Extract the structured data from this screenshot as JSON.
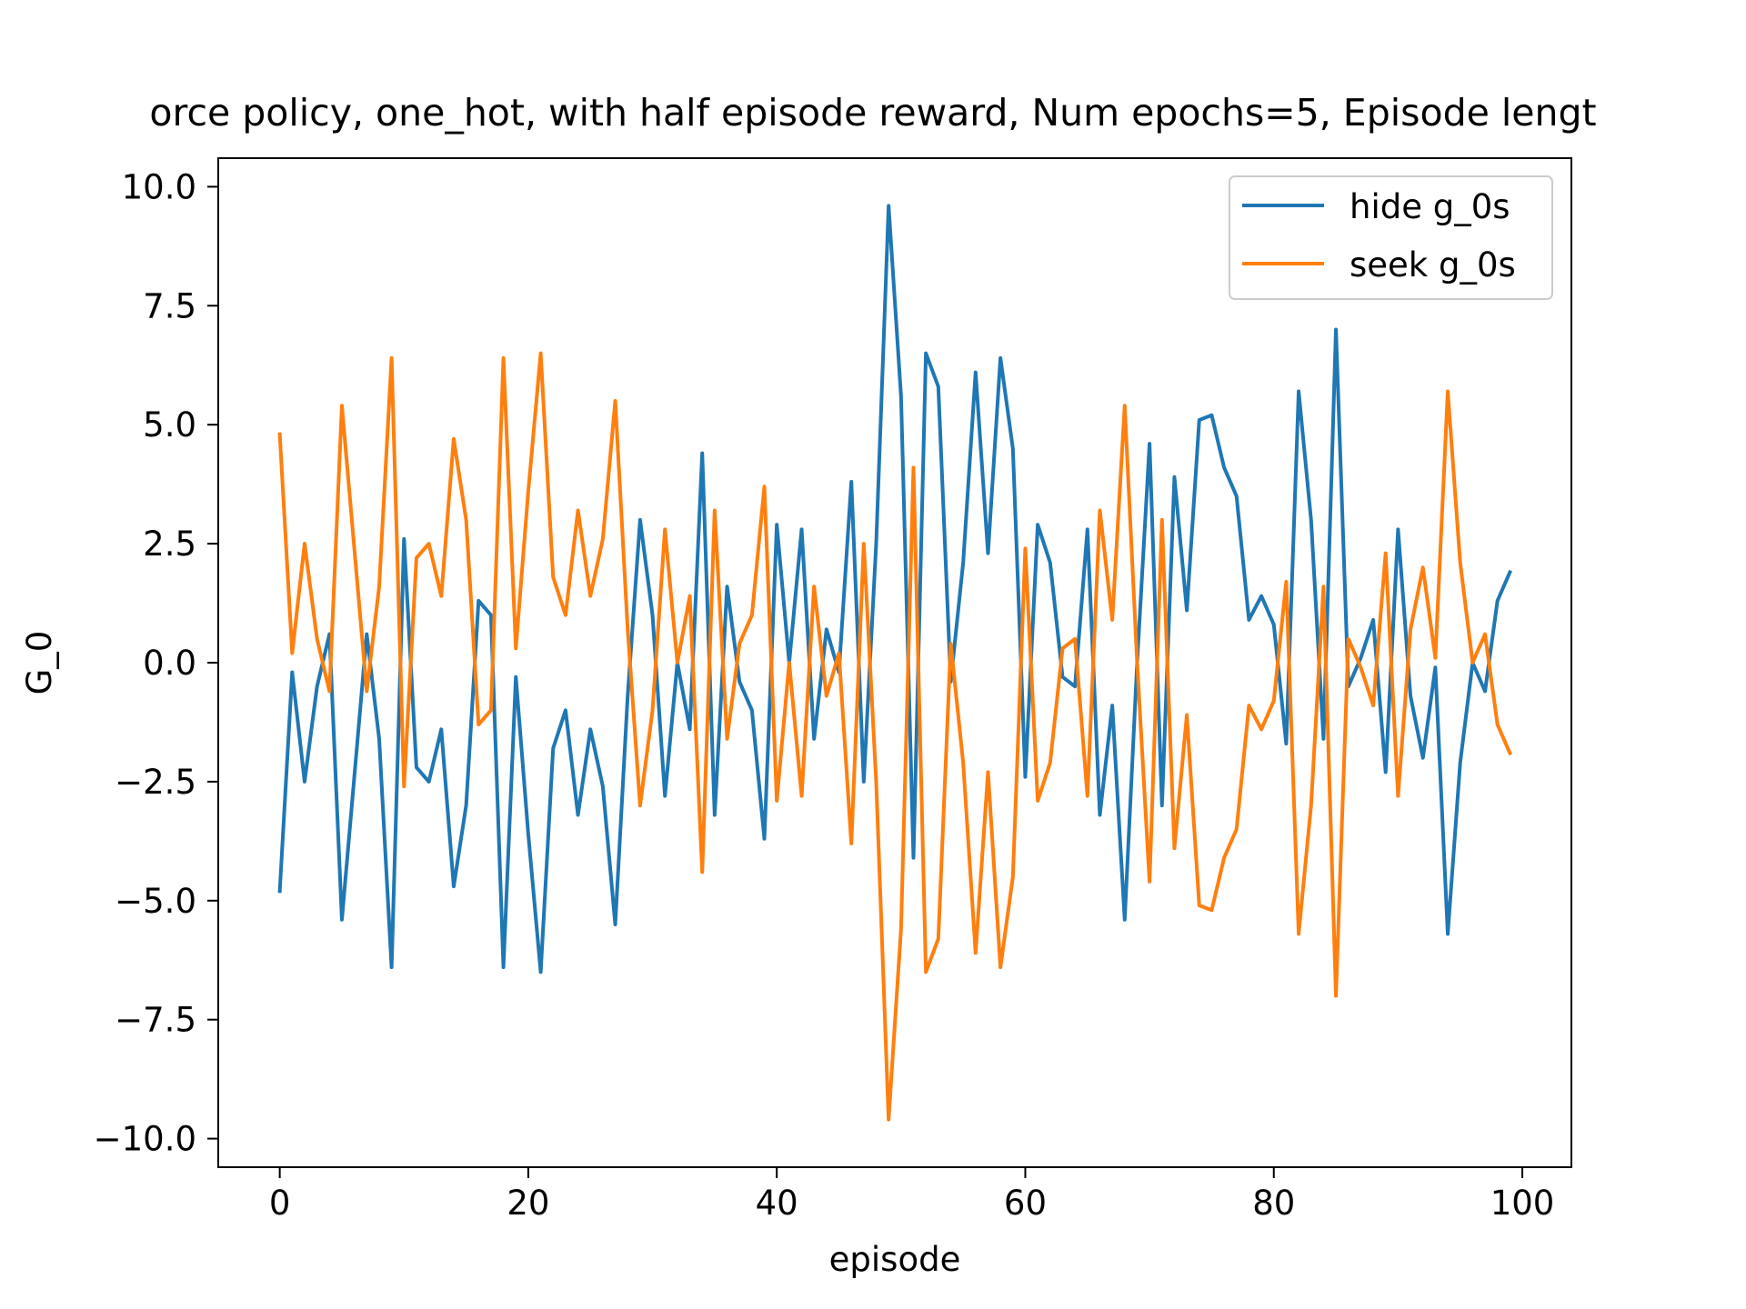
{
  "chart_data": {
    "type": "line",
    "title": "orce policy, one_hot, with half episode reward, Num epochs=5, Episode lengt",
    "xlabel": "episode",
    "ylabel": "G_0",
    "xlim": [
      -4.95,
      103.95
    ],
    "ylim": [
      -10.6,
      10.6
    ],
    "xticks": [
      0,
      20,
      40,
      60,
      80,
      100
    ],
    "xtick_labels": [
      "0",
      "20",
      "40",
      "60",
      "80",
      "100"
    ],
    "yticks": [
      10,
      7.5,
      5,
      2.5,
      0,
      -2.5,
      -5,
      -7.5,
      -10
    ],
    "ytick_labels": [
      "10.0",
      "7.5",
      "5.0",
      "2.5",
      "0.0",
      "−2.5",
      "−5.0",
      "−7.5",
      "−10.0"
    ],
    "grid": false,
    "legend_placement": "top-right",
    "series": [
      {
        "name": "hide g_0s",
        "color": "#1f77b4",
        "values": [
          -4.8,
          -0.2,
          -2.5,
          -0.5,
          0.6,
          -5.4,
          -2.4,
          0.6,
          -1.6,
          -6.4,
          2.6,
          -2.2,
          -2.5,
          -1.4,
          -4.7,
          -3.0,
          1.3,
          1.0,
          -6.4,
          -0.3,
          -3.6,
          -6.5,
          -1.8,
          -1.0,
          -3.2,
          -1.4,
          -2.6,
          -5.5,
          -0.7,
          3.0,
          1.0,
          -2.8,
          0.0,
          -1.4,
          4.4,
          -3.2,
          1.6,
          -0.4,
          -1.0,
          -3.7,
          2.9,
          0.0,
          2.8,
          -1.6,
          0.7,
          -0.2,
          3.8,
          -2.5,
          2.5,
          9.6,
          5.6,
          -4.1,
          6.5,
          5.8,
          -0.4,
          2.1,
          6.1,
          2.3,
          6.4,
          4.5,
          -2.4,
          2.9,
          2.1,
          -0.3,
          -0.5,
          2.8,
          -3.2,
          -0.9,
          -5.4,
          0.0,
          4.6,
          -3.0,
          3.9,
          1.1,
          5.1,
          5.2,
          4.1,
          3.5,
          0.9,
          1.4,
          0.8,
          -1.7,
          5.7,
          3.0,
          -1.6,
          7.0,
          -0.5,
          0.1,
          0.9,
          -2.3,
          2.8,
          -0.7,
          -2.0,
          -0.1,
          -5.7,
          -2.1,
          0.0,
          -0.6,
          1.3,
          1.9
        ]
      },
      {
        "name": "seek g_0s",
        "color": "#ff7f0e",
        "values": [
          4.8,
          0.2,
          2.5,
          0.5,
          -0.6,
          5.4,
          2.4,
          -0.6,
          1.6,
          6.4,
          -2.6,
          2.2,
          2.5,
          1.4,
          4.7,
          3.0,
          -1.3,
          -1.0,
          6.4,
          0.3,
          3.6,
          6.5,
          1.8,
          1.0,
          3.2,
          1.4,
          2.6,
          5.5,
          0.7,
          -3.0,
          -1.0,
          2.8,
          0.0,
          1.4,
          -4.4,
          3.2,
          -1.6,
          0.4,
          1.0,
          3.7,
          -2.9,
          0.0,
          -2.8,
          1.6,
          -0.7,
          0.2,
          -3.8,
          2.5,
          -2.5,
          -9.6,
          -5.6,
          4.1,
          -6.5,
          -5.8,
          0.4,
          -2.1,
          -6.1,
          -2.3,
          -6.4,
          -4.5,
          2.4,
          -2.9,
          -2.1,
          0.3,
          0.5,
          -2.8,
          3.2,
          0.9,
          5.4,
          0.0,
          -4.6,
          3.0,
          -3.9,
          -1.1,
          -5.1,
          -5.2,
          -4.1,
          -3.5,
          -0.9,
          -1.4,
          -0.8,
          1.7,
          -5.7,
          -3.0,
          1.6,
          -7.0,
          0.5,
          -0.1,
          -0.9,
          2.3,
          -2.8,
          0.7,
          2.0,
          0.1,
          5.7,
          2.1,
          0.0,
          0.6,
          -1.3,
          -1.9
        ]
      }
    ]
  }
}
